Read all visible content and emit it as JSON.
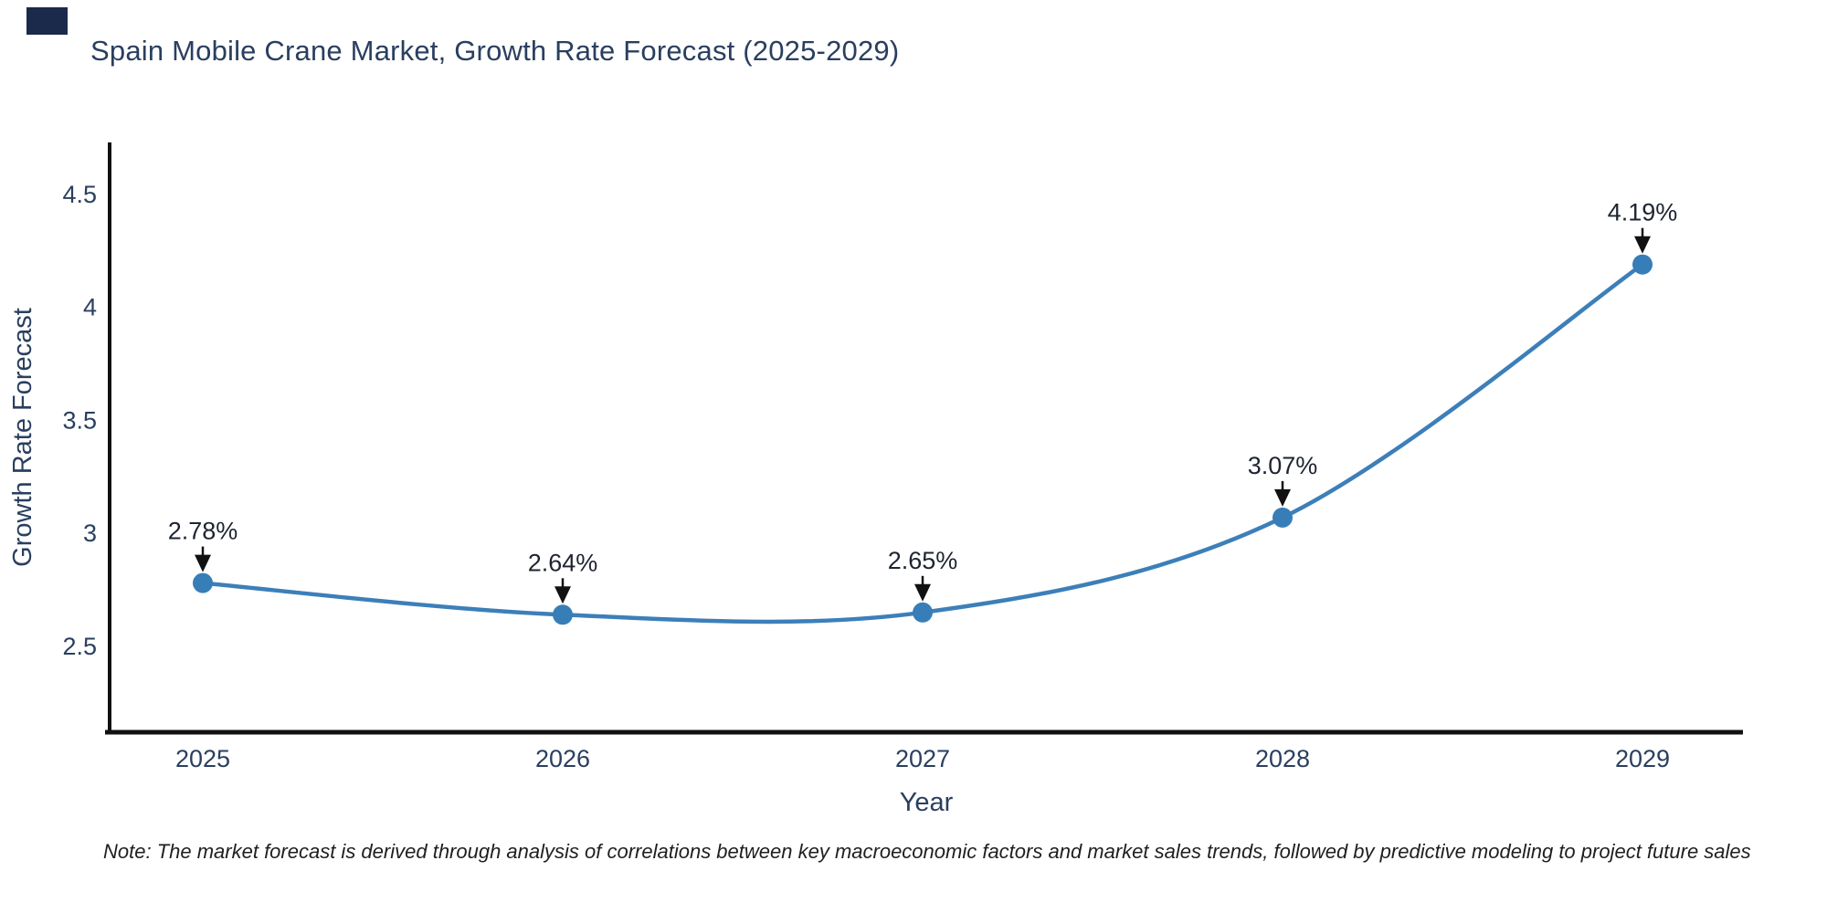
{
  "title": {
    "text": "Spain Mobile Crane Market, Growth Rate Forecast (2025-2029)",
    "color": "#2a3f5f"
  },
  "note": {
    "text": "Note: The market forecast is derived through analysis of correlations between key macroeconomic factors and market sales trends, followed by predictive modeling to project future sales"
  },
  "decor": {
    "top_left_block_color": "#1b2a4a"
  },
  "chart_data": {
    "type": "line",
    "title": "Spain Mobile Crane Market, Growth Rate Forecast (2025-2029)",
    "xlabel": "Year",
    "ylabel": "Growth Rate Forecast",
    "categories": [
      "2025",
      "2026",
      "2027",
      "2028",
      "2029"
    ],
    "series": [
      {
        "name": "Growth Rate Forecast",
        "values": [
          2.78,
          2.64,
          2.65,
          3.07,
          4.19
        ]
      }
    ],
    "point_labels": [
      "2.78%",
      "2.64%",
      "2.65%",
      "3.07%",
      "4.19%"
    ],
    "yticks": [
      2.5,
      3,
      3.5,
      4,
      4.5
    ],
    "ylim": [
      2.12,
      4.73
    ],
    "grid": false,
    "legend": "none",
    "curve": "spline",
    "line_color": "#3c7fb9",
    "marker_color": "#377eb8",
    "axis_color": "#111111",
    "tick_color": "#2a3f5f",
    "annotation_color": "#1e2430"
  }
}
